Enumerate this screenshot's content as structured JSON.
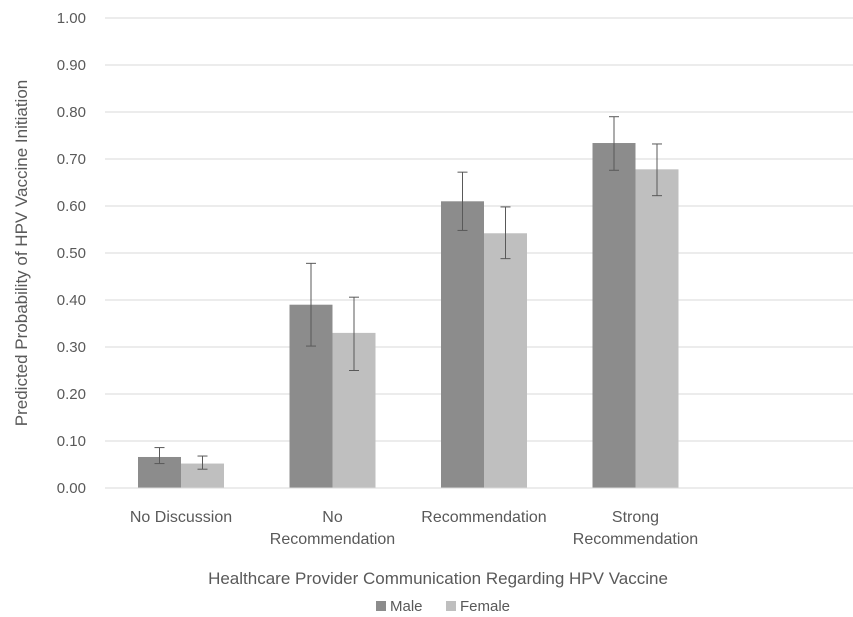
{
  "chart_data": {
    "type": "bar",
    "categories": [
      [
        "No Discussion"
      ],
      [
        "No",
        "Recommendation"
      ],
      [
        "Recommendation"
      ],
      [
        "Strong",
        "Recommendation"
      ]
    ],
    "series": [
      {
        "name": "Male",
        "color": "#8c8c8c",
        "values": [
          0.066,
          0.39,
          0.61,
          0.734
        ],
        "error_low": [
          0.052,
          0.302,
          0.548,
          0.676
        ],
        "error_high": [
          0.086,
          0.478,
          0.672,
          0.79
        ]
      },
      {
        "name": "Female",
        "color": "#bfbfbf",
        "values": [
          0.052,
          0.33,
          0.542,
          0.678
        ],
        "error_low": [
          0.04,
          0.25,
          0.488,
          0.622
        ],
        "error_high": [
          0.068,
          0.406,
          0.598,
          0.732
        ]
      }
    ],
    "yticks": [
      "0.00",
      "0.10",
      "0.20",
      "0.30",
      "0.40",
      "0.50",
      "0.60",
      "0.70",
      "0.80",
      "0.90",
      "1.00"
    ],
    "ylim": [
      0,
      1
    ],
    "xlabel": "Healthcare Provider Communication Regarding HPV Vaccine",
    "ylabel": "Predicted Probability of HPV Vaccine Initiation",
    "grid": true,
    "legend_position": "bottom"
  }
}
